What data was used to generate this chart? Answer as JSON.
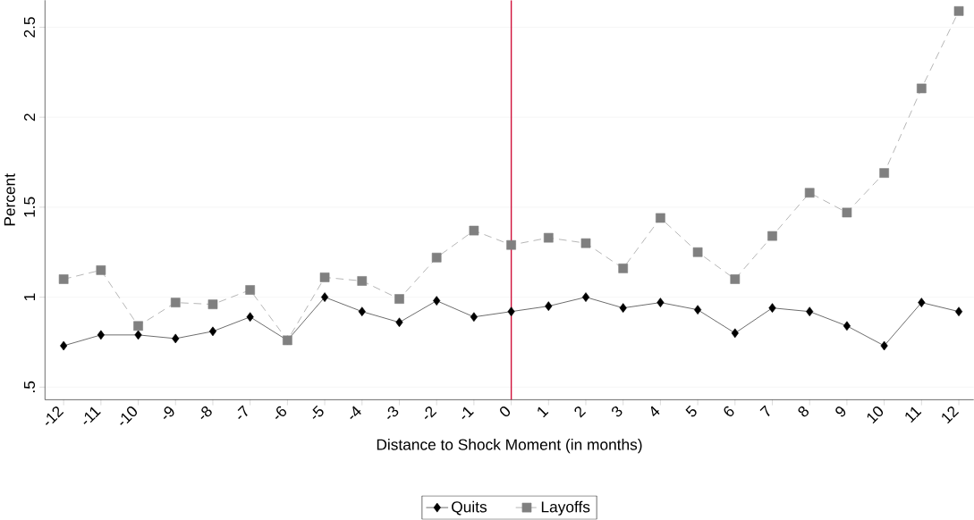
{
  "chart_data": {
    "type": "line",
    "xlabel": "Distance to Shock Moment (in months)",
    "ylabel": "Percent",
    "x": [
      -12,
      -11,
      -10,
      -9,
      -8,
      -7,
      -6,
      -5,
      -4,
      -3,
      -2,
      -1,
      0,
      1,
      2,
      3,
      4,
      5,
      6,
      7,
      8,
      9,
      10,
      11,
      12
    ],
    "series": [
      {
        "name": "Quits",
        "color": "#000000",
        "marker": "diamond",
        "line_style": "solid",
        "values": [
          0.73,
          0.79,
          0.79,
          0.77,
          0.81,
          0.89,
          0.76,
          1.0,
          0.92,
          0.86,
          0.98,
          0.89,
          0.92,
          0.95,
          1.0,
          0.94,
          0.97,
          0.93,
          0.8,
          0.94,
          0.92,
          0.84,
          0.73,
          0.97,
          0.92
        ]
      },
      {
        "name": "Layoffs",
        "color": "#808080",
        "marker": "square",
        "line_style": "dashed",
        "values": [
          1.1,
          1.15,
          0.84,
          0.97,
          0.96,
          1.04,
          0.76,
          1.11,
          1.09,
          0.99,
          1.22,
          1.37,
          1.29,
          1.33,
          1.3,
          1.16,
          1.44,
          1.25,
          1.1,
          1.34,
          1.58,
          1.47,
          1.69,
          2.16,
          2.59
        ]
      }
    ],
    "xlim": [
      -12.5,
      12.4
    ],
    "ylim": [
      0.43,
      2.65
    ],
    "xticks": [
      -12,
      -11,
      -10,
      -9,
      -8,
      -7,
      -6,
      -5,
      -4,
      -3,
      -2,
      -1,
      0,
      1,
      2,
      3,
      4,
      5,
      6,
      7,
      8,
      9,
      10,
      11,
      12
    ],
    "yticks": [
      {
        "value": 0.5,
        "label": ".5"
      },
      1,
      1.5,
      2,
      2.5
    ],
    "ref_lines": [
      {
        "axis": "x",
        "value": 0,
        "color": "#d0103a"
      }
    ],
    "grid": "y",
    "legend": "bottom"
  }
}
